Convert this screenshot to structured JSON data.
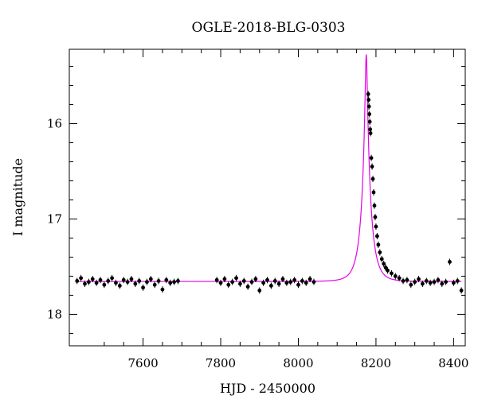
{
  "chart_data": {
    "type": "scatter",
    "title": "OGLE-2018-BLG-0303",
    "xlabel": "HJD - 2450000",
    "ylabel": "I magnitude",
    "xlim": [
      7410,
      8430
    ],
    "ylim": [
      18.33,
      15.22
    ],
    "y_inverted": true,
    "x_ticks": [
      7600,
      7800,
      8000,
      8200,
      8400
    ],
    "y_ticks": [
      16,
      17,
      18
    ],
    "x_tick_labels": [
      "7600",
      "7800",
      "8000",
      "8200",
      "8400"
    ],
    "y_tick_labels": [
      "16",
      "17",
      "18"
    ],
    "colors": {
      "data": "#000000",
      "model": "#e600e6",
      "axes": "#000000"
    },
    "baseline_mag": 17.655,
    "peak_hjd": 8175,
    "peak_mag": 15.28,
    "observing_seasons": [
      [
        7430,
        7690
      ],
      [
        7790,
        8040
      ],
      [
        8160,
        8420
      ]
    ],
    "data_points": [
      [
        7430,
        17.65
      ],
      [
        7440,
        17.62
      ],
      [
        7450,
        17.68
      ],
      [
        7460,
        17.66
      ],
      [
        7470,
        17.63
      ],
      [
        7480,
        17.67
      ],
      [
        7490,
        17.64
      ],
      [
        7500,
        17.69
      ],
      [
        7510,
        17.65
      ],
      [
        7520,
        17.62
      ],
      [
        7530,
        17.67
      ],
      [
        7540,
        17.7
      ],
      [
        7550,
        17.64
      ],
      [
        7560,
        17.66
      ],
      [
        7570,
        17.63
      ],
      [
        7580,
        17.68
      ],
      [
        7590,
        17.65
      ],
      [
        7600,
        17.72
      ],
      [
        7610,
        17.66
      ],
      [
        7620,
        17.63
      ],
      [
        7630,
        17.69
      ],
      [
        7640,
        17.65
      ],
      [
        7650,
        17.74
      ],
      [
        7660,
        17.64
      ],
      [
        7670,
        17.67
      ],
      [
        7680,
        17.66
      ],
      [
        7690,
        17.65
      ],
      [
        7790,
        17.64
      ],
      [
        7800,
        17.67
      ],
      [
        7810,
        17.63
      ],
      [
        7820,
        17.69
      ],
      [
        7830,
        17.66
      ],
      [
        7840,
        17.62
      ],
      [
        7850,
        17.68
      ],
      [
        7860,
        17.65
      ],
      [
        7870,
        17.71
      ],
      [
        7880,
        17.66
      ],
      [
        7890,
        17.63
      ],
      [
        7900,
        17.75
      ],
      [
        7910,
        17.67
      ],
      [
        7920,
        17.64
      ],
      [
        7930,
        17.7
      ],
      [
        7940,
        17.65
      ],
      [
        7950,
        17.68
      ],
      [
        7960,
        17.63
      ],
      [
        7970,
        17.67
      ],
      [
        7980,
        17.66
      ],
      [
        7990,
        17.64
      ],
      [
        8000,
        17.69
      ],
      [
        8010,
        17.65
      ],
      [
        8020,
        17.67
      ],
      [
        8030,
        17.63
      ],
      [
        8040,
        17.66
      ],
      [
        8180,
        15.69
      ],
      [
        8181,
        15.75
      ],
      [
        8182,
        15.82
      ],
      [
        8183,
        15.9
      ],
      [
        8184,
        15.98
      ],
      [
        8185,
        16.06
      ],
      [
        8186,
        16.1
      ],
      [
        8188,
        16.36
      ],
      [
        8190,
        16.45
      ],
      [
        8192,
        16.58
      ],
      [
        8194,
        16.72
      ],
      [
        8196,
        16.86
      ],
      [
        8198,
        16.98
      ],
      [
        8200,
        17.08
      ],
      [
        8203,
        17.18
      ],
      [
        8206,
        17.27
      ],
      [
        8210,
        17.35
      ],
      [
        8215,
        17.42
      ],
      [
        8220,
        17.47
      ],
      [
        8225,
        17.51
      ],
      [
        8230,
        17.54
      ],
      [
        8240,
        17.57
      ],
      [
        8250,
        17.6
      ],
      [
        8260,
        17.62
      ],
      [
        8270,
        17.65
      ],
      [
        8280,
        17.64
      ],
      [
        8290,
        17.69
      ],
      [
        8300,
        17.66
      ],
      [
        8310,
        17.63
      ],
      [
        8320,
        17.68
      ],
      [
        8330,
        17.65
      ],
      [
        8340,
        17.67
      ],
      [
        8350,
        17.66
      ],
      [
        8360,
        17.64
      ],
      [
        8370,
        17.68
      ],
      [
        8380,
        17.66
      ],
      [
        8390,
        17.45
      ],
      [
        8400,
        17.67
      ],
      [
        8410,
        17.65
      ],
      [
        8420,
        17.75
      ]
    ]
  }
}
